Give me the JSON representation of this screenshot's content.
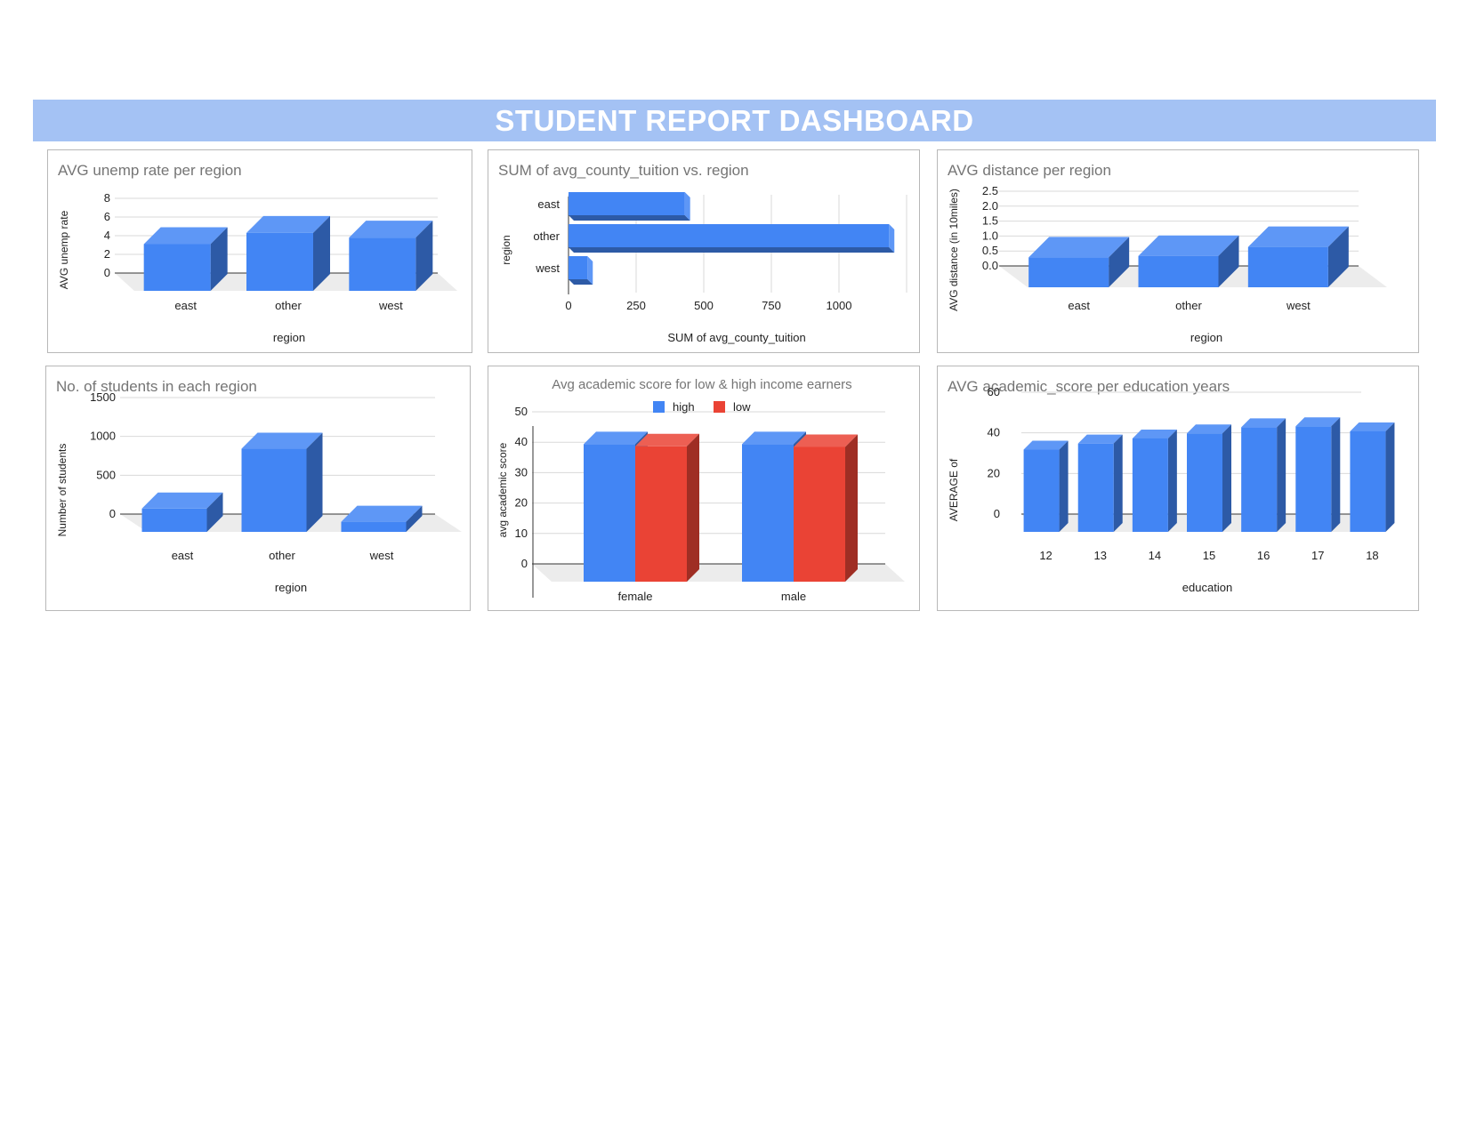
{
  "dashboard": {
    "title": "STUDENT REPORT DASHBOARD"
  },
  "colors": {
    "banner": "#a4c2f4",
    "blue": "#4285f4",
    "red": "#ea4335"
  },
  "chart_data": [
    {
      "type": "bar",
      "title": "AVG unemp rate per region",
      "xlabel": "region",
      "ylabel": "AVG unemp rate",
      "categories": [
        "east",
        "other",
        "west"
      ],
      "values": [
        5.0,
        6.2,
        5.7
      ],
      "yticks": [
        0,
        2,
        4,
        6,
        8
      ],
      "ylim": [
        0,
        8
      ],
      "grid": true
    },
    {
      "type": "bar",
      "orientation": "horizontal",
      "title": "SUM of avg_county_tuition vs. region",
      "xlabel": "SUM of avg_county_tuition",
      "ylabel": "region",
      "categories": [
        "east",
        "other",
        "west"
      ],
      "values": [
        430,
        1185,
        70
      ],
      "xticks": [
        0,
        250,
        500,
        750,
        1000
      ],
      "xlim": [
        0,
        1250
      ],
      "grid": true
    },
    {
      "type": "bar",
      "title": "AVG distance per region",
      "xlabel": "region",
      "ylabel": "AVG distance (in 10miles)",
      "categories": [
        "east",
        "other",
        "west"
      ],
      "values": [
        1.0,
        1.05,
        1.35
      ],
      "yticks": [
        "0.0",
        "0.5",
        "1.0",
        "1.5",
        "2.0",
        "2.5"
      ],
      "ylim": [
        0,
        2.5
      ],
      "grid": true
    },
    {
      "type": "bar",
      "title": "No. of students in each region",
      "xlabel": "region",
      "ylabel": "Number of students",
      "categories": [
        "east",
        "other",
        "west"
      ],
      "values": [
        300,
        1070,
        130
      ],
      "yticks": [
        0,
        500,
        1000,
        1500
      ],
      "ylim": [
        0,
        1500
      ],
      "grid": true
    },
    {
      "type": "bar",
      "title": "Avg academic score for low & high income earners",
      "xlabel": "",
      "ylabel": "avg academic score",
      "categories": [
        "female",
        "male"
      ],
      "series": [
        {
          "name": "high",
          "color": "#4285f4",
          "values": [
            45.2,
            45.2
          ]
        },
        {
          "name": "low",
          "color": "#ea4335",
          "values": [
            44.5,
            44.3
          ]
        }
      ],
      "yticks": [
        0,
        10,
        20,
        30,
        40,
        50
      ],
      "ylim": [
        0,
        50
      ],
      "legend": "top",
      "grid": true
    },
    {
      "type": "bar",
      "title": "AVG academic_score per education years",
      "xlabel": "education",
      "ylabel": "AVERAGE of",
      "categories": [
        "12",
        "13",
        "14",
        "15",
        "16",
        "17",
        "18"
      ],
      "values": [
        40.5,
        43.5,
        46,
        48.5,
        51.5,
        52,
        49.5
      ],
      "yticks": [
        0,
        20,
        40,
        60
      ],
      "ylim": [
        0,
        60
      ],
      "grid": true
    }
  ]
}
